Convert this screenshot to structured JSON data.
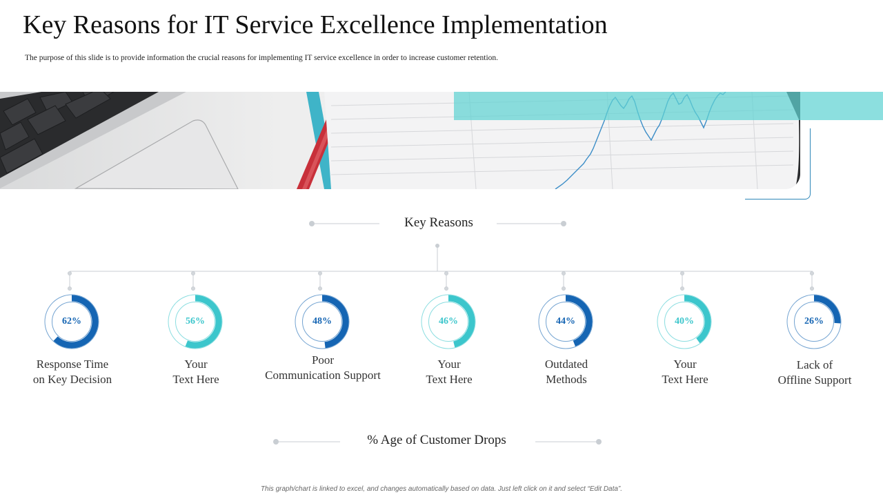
{
  "header": {
    "title": "Key Reasons for IT Service Excellence Implementation",
    "subtitle": "The purpose of this slide is to provide information the crucial reasons for implementing IT service excellence in order to increase customer retention."
  },
  "section_top": {
    "label": "Key Reasons"
  },
  "section_bottom": {
    "label": "%  Age of Customer Drops"
  },
  "footer": {
    "note": "This graph/chart is linked to excel, and changes automatically based on data. Just left click on it and select “Edit Data”."
  },
  "colors": {
    "dark_blue": "#1565b3",
    "teal": "#3cc6cc",
    "track": "#e4eaee"
  },
  "chart_data": {
    "type": "pie",
    "series": [
      {
        "label": "62%",
        "value": 62,
        "category": "Response Time on Key Decision",
        "lines": [
          "Response Time",
          "on Key Decision"
        ],
        "color": "dark_blue"
      },
      {
        "label": "56%",
        "value": 56,
        "category": "Your Text Here",
        "lines": [
          "Your",
          "Text Here"
        ],
        "color": "teal"
      },
      {
        "label": "48%",
        "value": 48,
        "category": "Poor Communication Support",
        "lines": [
          "Poor",
          "Communication Support"
        ],
        "color": "dark_blue"
      },
      {
        "label": "46%",
        "value": 46,
        "category": "Your Text Here",
        "lines": [
          "Your",
          "Text Here"
        ],
        "color": "teal"
      },
      {
        "label": "44%",
        "value": 44,
        "category": "Outdated Methods",
        "lines": [
          "Outdated",
          "Methods"
        ],
        "color": "dark_blue"
      },
      {
        "label": "40%",
        "value": 40,
        "category": "Your Text Here",
        "lines": [
          "Your",
          "Text Here"
        ],
        "color": "teal"
      },
      {
        "label": "26%",
        "value": 26,
        "category": "Lack of Offline Support",
        "lines": [
          "Lack of",
          "Offline Support"
        ],
        "color": "dark_blue"
      }
    ]
  }
}
